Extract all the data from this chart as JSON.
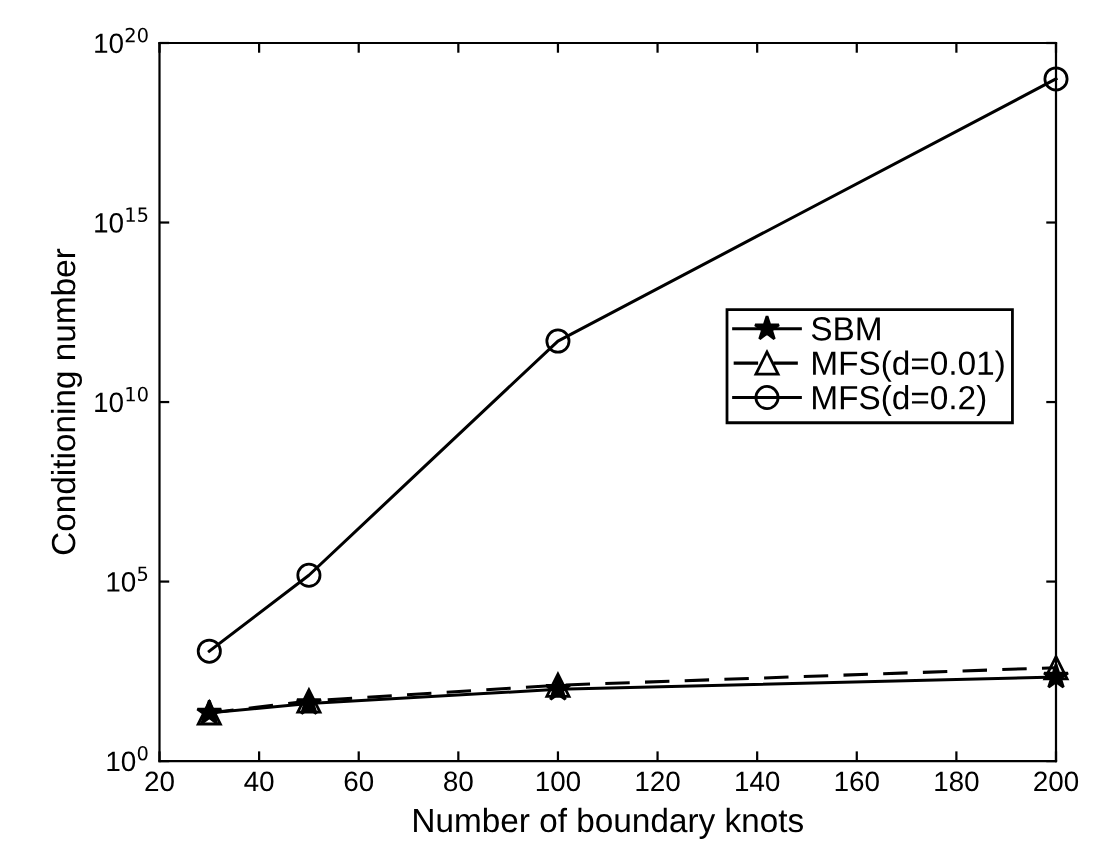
{
  "chart_data": {
    "type": "line",
    "xlabel": "Number of boundary knots",
    "ylabel": "Conditioning number",
    "log": "y",
    "x": [
      30,
      50,
      100,
      200
    ],
    "series": [
      {
        "name": "SBM",
        "color": "#000000",
        "marker": "star",
        "line_style": "solid",
        "values": [
          22,
          40,
          100,
          220
        ]
      },
      {
        "name": "MFS(d=0.01)",
        "color": "#000000",
        "marker": "triangle",
        "line_style": "dashed",
        "values": [
          22,
          47,
          130,
          400
        ]
      },
      {
        "name": "MFS(d=0.2)",
        "color": "#000000",
        "marker": "circle",
        "line_style": "solid",
        "values": [
          1150,
          150000,
          500000000000.0,
          1e+19
        ]
      }
    ],
    "xlim": [
      20,
      200
    ],
    "xticks": [
      20,
      40,
      60,
      80,
      100,
      120,
      140,
      160,
      180,
      200
    ],
    "ylim": [
      1,
      1e+20
    ],
    "yticks": [
      {
        "value": 1,
        "label": "10$^{0}$"
      },
      {
        "value": 100000.0,
        "label": "10$^{5}$"
      },
      {
        "value": 10000000000.0,
        "label": "10$^{10}$"
      },
      {
        "value": 1000000000000000.0,
        "label": "10$^{15}$"
      },
      {
        "value": 1e+20,
        "label": "10$^{20}$"
      }
    ],
    "grid": false,
    "legend": "right"
  }
}
